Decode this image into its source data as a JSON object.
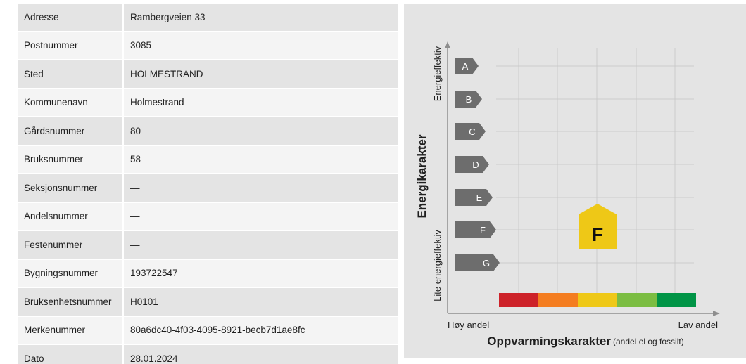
{
  "info_rows": [
    {
      "label": "Adresse",
      "value": "Rambergveien 33"
    },
    {
      "label": "Postnummer",
      "value": "3085"
    },
    {
      "label": "Sted",
      "value": "HOLMESTRAND"
    },
    {
      "label": "Kommunenavn",
      "value": "Holmestrand"
    },
    {
      "label": "Gårdsnummer",
      "value": "80"
    },
    {
      "label": "Bruksnummer",
      "value": "58"
    },
    {
      "label": "Seksjonsnummer",
      "value": "—"
    },
    {
      "label": "Andelsnummer",
      "value": "—"
    },
    {
      "label": "Festenummer",
      "value": "—"
    },
    {
      "label": "Bygningsnummer",
      "value": "193722547"
    },
    {
      "label": "Bruksenhetsnummer",
      "value": "H0101"
    },
    {
      "label": "Merkenummer",
      "value": "80a6dc40-4f03-4095-8921-becb7d1ae8fc"
    },
    {
      "label": "Dato",
      "value": "28.01.2024"
    }
  ],
  "energy_chart": {
    "y_axis_title": "Energikarakter",
    "y_top_label": "Energieffektiv",
    "y_bottom_label": "Lite energieffektiv",
    "x_axis_title": "Oppvarmingskarakter",
    "x_axis_subtitle": "(andel el og fossilt)",
    "x_left_label": "Høy andel",
    "x_right_label": "Lav andel",
    "grades": [
      "A",
      "B",
      "C",
      "D",
      "E",
      "F",
      "G"
    ],
    "energy_grade": "F",
    "heating_scale_colors": [
      "#cd2229",
      "#f47d20",
      "#eec817",
      "#7bbd42",
      "#009446"
    ],
    "heating_grade_position": "yellow",
    "house_color": "#eec817",
    "grade_arrow_color": "#6d6d6d"
  }
}
